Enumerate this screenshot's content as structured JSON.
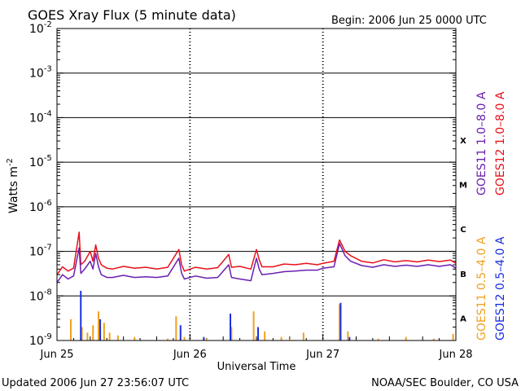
{
  "chart_data": {
    "type": "line",
    "title": "GOES Xray Flux (5 minute data)",
    "begin": "Begin:  2006 Jun 25 0000 UTC",
    "xlabel": "Universal Time",
    "ylabel": "Watts m",
    "ylabel_exp": "-2",
    "updated": "Updated 2006 Jun 27 23:56:07 UTC",
    "credit": "NOAA/SEC Boulder, CO USA",
    "scale": "log",
    "ylim_exp": [
      -9,
      -2
    ],
    "y_ticks": [
      {
        "base": "10",
        "exp": "-2",
        "e": -2
      },
      {
        "base": "10",
        "exp": "-3",
        "e": -3
      },
      {
        "base": "10",
        "exp": "-4",
        "e": -4
      },
      {
        "base": "10",
        "exp": "-5",
        "e": -5
      },
      {
        "base": "10",
        "exp": "-6",
        "e": -6
      },
      {
        "base": "10",
        "exp": "-7",
        "e": -7
      },
      {
        "base": "10",
        "exp": "-8",
        "e": -8
      },
      {
        "base": "10",
        "exp": "-9",
        "e": -9
      }
    ],
    "x_ticks": [
      {
        "label": "Jun 25",
        "x": 0
      },
      {
        "label": "Jun 26",
        "x": 24
      },
      {
        "label": "Jun 27",
        "x": 48
      },
      {
        "label": "Jun 28",
        "x": 72
      }
    ],
    "xlim_hours": [
      0,
      72
    ],
    "flare_classes": [
      {
        "label": "X",
        "e": -4.5
      },
      {
        "label": "M",
        "e": -5.5
      },
      {
        "label": "C",
        "e": -6.5
      },
      {
        "label": "B",
        "e": -7.5
      },
      {
        "label": "A",
        "e": -8.5
      }
    ],
    "legend_long": [
      {
        "name": "GOES11 1.0–8.0 A",
        "color": "#6a1fb0"
      },
      {
        "name": "GOES12 1.0–8.0 A",
        "color": "#e8101a"
      }
    ],
    "legend_short": [
      {
        "name": "GOES11 0.5–4.0 A",
        "color": "#f0a020"
      },
      {
        "name": "GOES12 0.5–4.0 A",
        "color": "#1a2ee0"
      }
    ],
    "series": [
      {
        "name": "GOES12 1.0–8.0 A",
        "color": "#e8101a",
        "points": [
          [
            0,
            3e-08
          ],
          [
            1,
            4.5e-08
          ],
          [
            2,
            3.6e-08
          ],
          [
            3,
            4.2e-08
          ],
          [
            4,
            2.7e-07
          ],
          [
            4.3,
            5e-08
          ],
          [
            5,
            6e-08
          ],
          [
            6,
            1e-07
          ],
          [
            6.5,
            6e-08
          ],
          [
            7,
            1.4e-07
          ],
          [
            7.5,
            7e-08
          ],
          [
            8,
            5e-08
          ],
          [
            9,
            4.2e-08
          ],
          [
            10,
            4e-08
          ],
          [
            12,
            4.6e-08
          ],
          [
            14,
            4.2e-08
          ],
          [
            16,
            4.4e-08
          ],
          [
            18,
            4e-08
          ],
          [
            20,
            4.4e-08
          ],
          [
            22,
            1.1e-07
          ],
          [
            22.5,
            5e-08
          ],
          [
            23,
            3.6e-08
          ],
          [
            25,
            4.4e-08
          ],
          [
            27,
            4e-08
          ],
          [
            29,
            4.3e-08
          ],
          [
            31,
            8.5e-08
          ],
          [
            31.5,
            4.4e-08
          ],
          [
            33,
            4.6e-08
          ],
          [
            35,
            4e-08
          ],
          [
            36,
            1.1e-07
          ],
          [
            36.5,
            6.5e-08
          ],
          [
            37,
            4.5e-08
          ],
          [
            39,
            4.5e-08
          ],
          [
            41,
            5.2e-08
          ],
          [
            43,
            5e-08
          ],
          [
            45,
            5.4e-08
          ],
          [
            47,
            5e-08
          ],
          [
            48,
            5.4e-08
          ],
          [
            50,
            6e-08
          ],
          [
            51,
            1.8e-07
          ],
          [
            52,
            1e-07
          ],
          [
            53,
            8e-08
          ],
          [
            55,
            6e-08
          ],
          [
            57,
            5.5e-08
          ],
          [
            59,
            6.5e-08
          ],
          [
            61,
            5.8e-08
          ],
          [
            63,
            6.2e-08
          ],
          [
            65,
            5.8e-08
          ],
          [
            67,
            6.4e-08
          ],
          [
            69,
            5.9e-08
          ],
          [
            71,
            6.4e-08
          ],
          [
            72,
            5.4e-08
          ]
        ]
      },
      {
        "name": "GOES11 1.0–8.0 A",
        "color": "#6a1fb0",
        "points": [
          [
            0,
            2e-08
          ],
          [
            1,
            3e-08
          ],
          [
            2,
            2.4e-08
          ],
          [
            3,
            2.8e-08
          ],
          [
            4,
            1.2e-07
          ],
          [
            4.3,
            3.2e-08
          ],
          [
            5,
            4e-08
          ],
          [
            6,
            6e-08
          ],
          [
            6.5,
            4e-08
          ],
          [
            7,
            9e-08
          ],
          [
            7.5,
            4.5e-08
          ],
          [
            8,
            3e-08
          ],
          [
            9,
            2.6e-08
          ],
          [
            10,
            2.6e-08
          ],
          [
            12,
            2.9e-08
          ],
          [
            14,
            2.6e-08
          ],
          [
            16,
            2.7e-08
          ],
          [
            18,
            2.6e-08
          ],
          [
            20,
            2.8e-08
          ],
          [
            22,
            7e-08
          ],
          [
            22.5,
            3.2e-08
          ],
          [
            23,
            2.4e-08
          ],
          [
            25,
            2.8e-08
          ],
          [
            27,
            2.5e-08
          ],
          [
            29,
            2.6e-08
          ],
          [
            31,
            5e-08
          ],
          [
            31.5,
            2.6e-08
          ],
          [
            33,
            2.4e-08
          ],
          [
            35,
            2.2e-08
          ],
          [
            36,
            7e-08
          ],
          [
            36.5,
            4e-08
          ],
          [
            37,
            3e-08
          ],
          [
            39,
            3.2e-08
          ],
          [
            41,
            3.5e-08
          ],
          [
            43,
            3.6e-08
          ],
          [
            45,
            3.8e-08
          ],
          [
            47,
            3.8e-08
          ],
          [
            48,
            4.2e-08
          ],
          [
            50,
            4.5e-08
          ],
          [
            51,
            1.5e-07
          ],
          [
            52,
            8e-08
          ],
          [
            53,
            6e-08
          ],
          [
            55,
            4.8e-08
          ],
          [
            57,
            4.4e-08
          ],
          [
            59,
            5e-08
          ],
          [
            61,
            4.6e-08
          ],
          [
            63,
            4.9e-08
          ],
          [
            65,
            4.6e-08
          ],
          [
            67,
            5e-08
          ],
          [
            69,
            4.6e-08
          ],
          [
            71,
            5e-08
          ],
          [
            72,
            4.2e-08
          ]
        ]
      },
      {
        "name": "GOES11 0.5–4.0 A",
        "color": "#f0a020",
        "spikes": [
          [
            2.5,
            3e-09
          ],
          [
            4.5,
            2e-09
          ],
          [
            5.5,
            1.5e-09
          ],
          [
            6.5,
            2.2e-09
          ],
          [
            7.5,
            4.5e-09
          ],
          [
            8.5,
            2.5e-09
          ],
          [
            9.5,
            1.5e-09
          ],
          [
            11,
            1.3e-09
          ],
          [
            14,
            1.2e-09
          ],
          [
            20,
            1.1e-09
          ],
          [
            21.5,
            3.5e-09
          ],
          [
            23,
            1.2e-09
          ],
          [
            27,
            1.1e-09
          ],
          [
            31.5,
            2e-09
          ],
          [
            35.5,
            4.5e-09
          ],
          [
            37.5,
            1.6e-09
          ],
          [
            40.5,
            1.2e-09
          ],
          [
            42,
            1.1e-09
          ],
          [
            44.5,
            1.5e-09
          ],
          [
            51,
            6.5e-09
          ],
          [
            52.5,
            1.6e-09
          ],
          [
            58,
            1.1e-09
          ],
          [
            63,
            1.2e-09
          ],
          [
            68,
            1.1e-09
          ],
          [
            71.5,
            1.4e-09
          ]
        ]
      },
      {
        "name": "GOES12 0.5–4.0 A",
        "color": "#1a2ee0",
        "spikes": [
          [
            4.3,
            1.3e-08
          ],
          [
            7.8,
            3e-09
          ],
          [
            22.3,
            2.2e-09
          ],
          [
            26.5,
            1.2e-09
          ],
          [
            31.3,
            4e-09
          ],
          [
            36.3,
            2e-09
          ],
          [
            51.2,
            7e-09
          ],
          [
            52.8,
            1.2e-09
          ]
        ]
      }
    ]
  }
}
